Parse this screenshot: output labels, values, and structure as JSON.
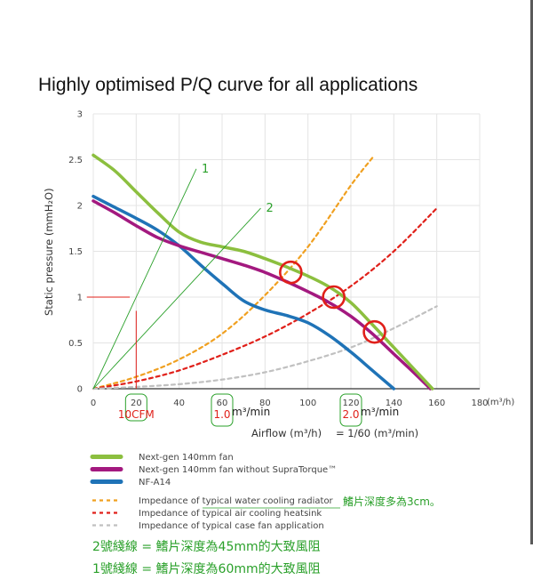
{
  "chart_data": {
    "type": "line",
    "title": "Highly optimised P/Q curve for all applications",
    "xlabel": "Airflow (m³/h)",
    "ylabel": "Static pressure (mmH₂O)",
    "xlim": [
      0,
      180
    ],
    "ylim": [
      0,
      3
    ],
    "x_ticks": [
      "0",
      "20",
      "40",
      "60",
      "80",
      "100",
      "120",
      "140",
      "160",
      "180"
    ],
    "x_unit": "(m³/h)",
    "y_ticks": [
      "0",
      "0.5",
      "1",
      "1.5",
      "2",
      "2.5",
      "3"
    ],
    "grid": true,
    "series": [
      {
        "name": "Next-gen 140mm fan",
        "color": "#8cbf3f",
        "style": "solid",
        "x": [
          0,
          10,
          20,
          30,
          40,
          50,
          60,
          70,
          80,
          90,
          100,
          110,
          120,
          130,
          140,
          150,
          158
        ],
        "y": [
          2.55,
          2.38,
          2.15,
          1.92,
          1.71,
          1.6,
          1.55,
          1.5,
          1.42,
          1.33,
          1.23,
          1.11,
          0.94,
          0.7,
          0.45,
          0.2,
          0
        ]
      },
      {
        "name": "Next-gen 140mm fan without SupraTorque™",
        "color": "#a3197f",
        "style": "solid",
        "x": [
          0,
          10,
          20,
          30,
          40,
          50,
          60,
          70,
          80,
          90,
          100,
          110,
          120,
          130,
          140,
          150,
          157
        ],
        "y": [
          2.05,
          1.92,
          1.78,
          1.65,
          1.56,
          1.49,
          1.42,
          1.35,
          1.27,
          1.17,
          1.06,
          0.94,
          0.79,
          0.6,
          0.38,
          0.16,
          0
        ]
      },
      {
        "name": "NF-A14",
        "color": "#1f73b7",
        "style": "solid",
        "x": [
          0,
          10,
          20,
          30,
          40,
          50,
          60,
          70,
          80,
          90,
          100,
          110,
          120,
          130,
          140
        ],
        "y": [
          2.1,
          1.98,
          1.86,
          1.73,
          1.56,
          1.35,
          1.15,
          0.96,
          0.86,
          0.8,
          0.72,
          0.58,
          0.4,
          0.2,
          0
        ]
      },
      {
        "name": "Impedance of typical water cooling radiator",
        "color": "#f0a020",
        "style": "dashed",
        "x": [
          0,
          20,
          40,
          60,
          80,
          100,
          120,
          130
        ],
        "y": [
          0,
          0.13,
          0.32,
          0.6,
          1.02,
          1.55,
          2.22,
          2.52
        ]
      },
      {
        "name": "Impedance of typical air cooling heatsink",
        "color": "#e0201a",
        "style": "dashed",
        "x": [
          0,
          20,
          40,
          60,
          80,
          100,
          120,
          140,
          160
        ],
        "y": [
          0,
          0.08,
          0.2,
          0.37,
          0.57,
          0.82,
          1.12,
          1.5,
          1.97
        ]
      },
      {
        "name": "Impedance of typical case fan application",
        "color": "#c0c0c0",
        "style": "dashed",
        "x": [
          0,
          20,
          40,
          60,
          80,
          100,
          120,
          140,
          160
        ],
        "y": [
          0,
          0.02,
          0.05,
          0.1,
          0.18,
          0.3,
          0.45,
          0.66,
          0.9
        ]
      }
    ],
    "legend": {
      "placement": "bottom-left"
    },
    "annotations": {
      "circle_points": [
        {
          "x": 92,
          "y": 1.27,
          "color": "#e0201a"
        },
        {
          "x": 112,
          "y": 1.0,
          "color": "#e0201a"
        },
        {
          "x": 131,
          "y": 0.62,
          "color": "#e0201a"
        }
      ],
      "green_lines": [
        {
          "label": "1",
          "x": [
            0,
            48
          ],
          "y": [
            0,
            2.4
          ]
        },
        {
          "label": "2",
          "x": [
            0,
            78
          ],
          "y": [
            0,
            1.97
          ]
        }
      ],
      "red_marks": {
        "hline": {
          "x": [
            -3,
            17
          ],
          "y": 1.0
        },
        "vline": {
          "x": 20,
          "y": [
            0,
            0.85
          ]
        }
      },
      "conversion_labels": [
        {
          "red": "10CFM",
          "x": 20
        },
        {
          "red": "1.0",
          "x": 60,
          "suffix": "m³/min"
        },
        {
          "red": "2.0",
          "x": 120,
          "suffix": "m³/min"
        }
      ],
      "airflow_equation": "= 1/60 (m³/min)",
      "note_radiator": "鰭片深度多為3cm。",
      "note_line_2": "2號綫線 = 鰭片深度為45mm的大致風阻",
      "note_line_1": "1號綫線 = 鰭片深度為60mm的大致風阻"
    }
  }
}
